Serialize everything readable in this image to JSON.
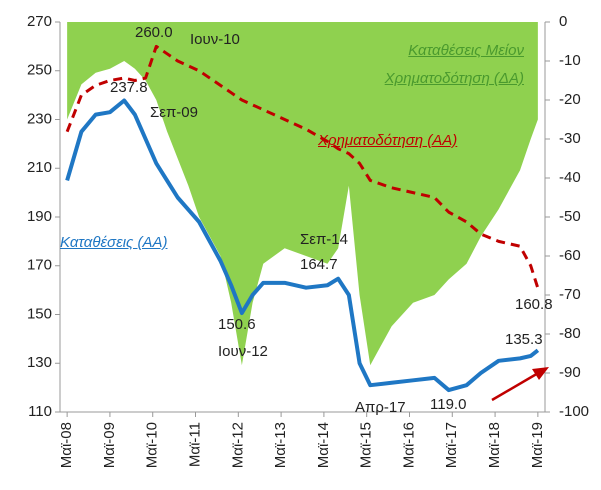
{
  "chart_data": {
    "type": "line",
    "x": [
      "2008-05",
      "2008-09",
      "2009-01",
      "2009-05",
      "2009-09",
      "2009-12",
      "2010-03",
      "2010-06",
      "2010-09",
      "2010-12",
      "2011-03",
      "2011-06",
      "2011-09",
      "2011-12",
      "2012-03",
      "2012-06",
      "2012-09",
      "2012-12",
      "2013-06",
      "2013-12",
      "2014-06",
      "2014-09",
      "2014-12",
      "2015-03",
      "2015-06",
      "2015-12",
      "2016-06",
      "2016-12",
      "2017-04",
      "2017-09",
      "2018-01",
      "2018-06",
      "2018-12",
      "2019-03",
      "2019-05"
    ],
    "series": [
      {
        "name": "Καταθέσεις (ΑΑ)",
        "color": "#1f77c4",
        "style": "solid",
        "axis": "y",
        "values": [
          205,
          225,
          232,
          233,
          237.8,
          232,
          222,
          212,
          205,
          198,
          193,
          188,
          180,
          172,
          162,
          150.6,
          158,
          163,
          163,
          161,
          162,
          164.7,
          158,
          130,
          121,
          122,
          123,
          124,
          119.0,
          121,
          126,
          131,
          132,
          133,
          135.3
        ]
      },
      {
        "name": "Χρηματοδότηση (ΑΑ)",
        "color": "#c00000",
        "style": "dashed",
        "axis": "y",
        "values": [
          225,
          240,
          244,
          246,
          247,
          246,
          247,
          260.0,
          257,
          254,
          252,
          250,
          247,
          244,
          241,
          238,
          236,
          234,
          230,
          226,
          221,
          218,
          216,
          212,
          205,
          202,
          200,
          198,
          192,
          188,
          183,
          180,
          178,
          170,
          160.8
        ]
      },
      {
        "name": "Καταθέσεις Μείον Χρηματοδότηση (ΔΑ)",
        "color": "#8fd14f",
        "style": "area",
        "axis": "y2",
        "values": [
          -25,
          -16,
          -13,
          -12,
          -10,
          -12,
          -15,
          -20,
          -28,
          -35,
          -42,
          -50,
          -55,
          -60,
          -72,
          -88,
          -72,
          -62,
          -58,
          -60,
          -62,
          -58,
          -42,
          -70,
          -88,
          -78,
          -72,
          -70,
          -66,
          -62,
          -55,
          -48,
          -38,
          -30,
          -25
        ]
      }
    ],
    "xlim": [
      "2008-03",
      "2019-07"
    ],
    "xticks": [
      {
        "value": "2008-05",
        "label": "Μαϊ-08"
      },
      {
        "value": "2009-05",
        "label": "Μαϊ-09"
      },
      {
        "value": "2010-05",
        "label": "Μαϊ-10"
      },
      {
        "value": "2011-05",
        "label": "Μαϊ-11"
      },
      {
        "value": "2012-05",
        "label": "Μαϊ-12"
      },
      {
        "value": "2013-05",
        "label": "Μαϊ-13"
      },
      {
        "value": "2014-05",
        "label": "Μαϊ-14"
      },
      {
        "value": "2015-05",
        "label": "Μαϊ-15"
      },
      {
        "value": "2016-05",
        "label": "Μαϊ-16"
      },
      {
        "value": "2017-05",
        "label": "Μαϊ-17"
      },
      {
        "value": "2018-05",
        "label": "Μαϊ-18"
      },
      {
        "value": "2019-05",
        "label": "Μαϊ-19"
      }
    ],
    "ylim": [
      110,
      270
    ],
    "yticks": [
      110,
      130,
      150,
      170,
      190,
      210,
      230,
      250,
      270
    ],
    "y2lim": [
      -100,
      0
    ],
    "y2ticks": [
      -100,
      -90,
      -80,
      -70,
      -60,
      -50,
      -40,
      -30,
      -20,
      -10,
      0
    ],
    "annotations": [
      "260.0",
      "Ιουν-10",
      "237.8",
      "Σεπ-09",
      "150.6",
      "Ιουν-12",
      "Σεπ-14",
      "164.7",
      "Απρ-17",
      "119.0",
      "160.8",
      "135.3"
    ]
  }
}
